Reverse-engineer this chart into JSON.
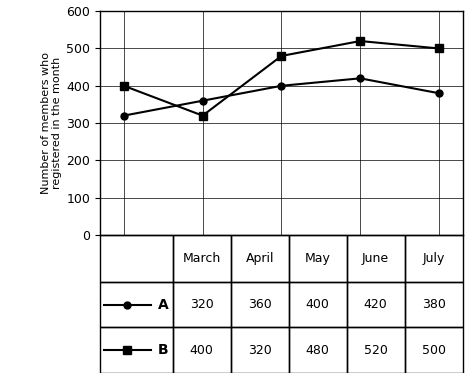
{
  "months": [
    "March",
    "April",
    "May",
    "June",
    "July"
  ],
  "club_a": [
    320,
    360,
    400,
    420,
    380
  ],
  "club_b": [
    400,
    320,
    480,
    520,
    500
  ],
  "ylabel": "Number of members who\nregistered in the month",
  "ylim": [
    0,
    600
  ],
  "yticks": [
    0,
    100,
    200,
    300,
    400,
    500,
    600
  ],
  "table_rows": [
    [
      "A",
      "320",
      "360",
      "400",
      "420",
      "380"
    ],
    [
      "B",
      "400",
      "320",
      "480",
      "520",
      "500"
    ]
  ],
  "background_color": "#ffffff",
  "line_color": "#000000",
  "axis_fontsize": 8,
  "tick_fontsize": 9,
  "table_fontsize": 9,
  "col_widths": [
    0.2,
    0.16,
    0.16,
    0.16,
    0.16,
    0.16
  ]
}
